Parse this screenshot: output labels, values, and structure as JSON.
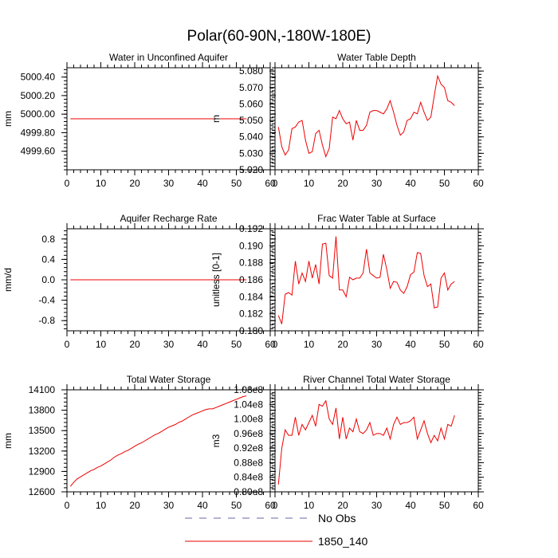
{
  "figure_title": "Polar(60-90N,-180W-180E)",
  "legend": [
    {
      "label": "No Obs",
      "color": "#6666aa",
      "dash": true
    },
    {
      "label": "1850_140",
      "color": "#ee0000",
      "dash": false
    }
  ],
  "chart_data": [
    {
      "type": "line",
      "title": "Water in Unconfined Aquifer",
      "ylabel": "mm",
      "xlim": [
        0,
        60
      ],
      "ylim": [
        4999.4,
        5000.5
      ],
      "xticks": [
        0,
        10,
        20,
        30,
        40,
        50,
        60
      ],
      "xtick_labels": [
        "0",
        "10",
        "20",
        "30",
        "40",
        "50",
        "60"
      ],
      "yticks": [
        4999.6,
        4999.8,
        5000.0,
        5000.2,
        5000.4
      ],
      "ytick_labels": [
        "4999.60",
        "4999.80",
        "5000.00",
        "5000.20",
        "5000.40"
      ],
      "series": [
        {
          "name": "1850_140",
          "color": "#ee0000",
          "x": [
            1,
            53
          ],
          "values": [
            4999.95,
            4999.95
          ]
        }
      ]
    },
    {
      "type": "line",
      "title": "Water Table Depth",
      "ylabel": "m",
      "xlim": [
        0,
        60
      ],
      "ylim": [
        5.02,
        5.082
      ],
      "xticks": [
        0,
        10,
        20,
        30,
        40,
        50,
        60
      ],
      "xtick_labels": [
        "0",
        "10",
        "20",
        "30",
        "40",
        "50",
        "60"
      ],
      "yticks": [
        5.02,
        5.03,
        5.04,
        5.05,
        5.06,
        5.07,
        5.08
      ],
      "ytick_labels": [
        "5.020",
        "5.030",
        "5.040",
        "5.050",
        "5.060",
        "5.070",
        "5.080"
      ],
      "series": [
        {
          "name": "1850_140",
          "color": "#ee0000",
          "x": [
            1,
            2,
            3,
            4,
            5,
            6,
            7,
            8,
            9,
            10,
            11,
            12,
            13,
            14,
            15,
            16,
            17,
            18,
            19,
            20,
            21,
            22,
            23,
            24,
            25,
            26,
            27,
            28,
            29,
            30,
            31,
            32,
            33,
            34,
            35,
            36,
            37,
            38,
            39,
            40,
            41,
            42,
            43,
            44,
            45,
            46,
            47,
            48,
            49,
            50,
            51,
            52,
            53
          ],
          "values": [
            5.046,
            5.034,
            5.029,
            5.032,
            5.045,
            5.046,
            5.049,
            5.05,
            5.038,
            5.03,
            5.031,
            5.042,
            5.044,
            5.035,
            5.028,
            5.033,
            5.052,
            5.051,
            5.056,
            5.051,
            5.048,
            5.049,
            5.038,
            5.05,
            5.044,
            5.044,
            5.047,
            5.055,
            5.056,
            5.056,
            5.055,
            5.054,
            5.057,
            5.062,
            5.055,
            5.047,
            5.041,
            5.043,
            5.05,
            5.051,
            5.055,
            5.054,
            5.061,
            5.055,
            5.05,
            5.052,
            5.065,
            5.077,
            5.072,
            5.07,
            5.062,
            5.061,
            5.059
          ]
        }
      ]
    },
    {
      "type": "line",
      "title": "Aquifer Recharge Rate",
      "ylabel": "mm/d",
      "xlim": [
        0,
        60
      ],
      "ylim": [
        -1.0,
        1.0
      ],
      "xticks": [
        0,
        10,
        20,
        30,
        40,
        50,
        60
      ],
      "xtick_labels": [
        "0",
        "10",
        "20",
        "30",
        "40",
        "50",
        "60"
      ],
      "yticks": [
        -0.8,
        -0.4,
        0.0,
        0.4,
        0.8
      ],
      "ytick_labels": [
        "-0.8",
        "-0.4",
        "0.0",
        "0.4",
        "0.8"
      ],
      "series": [
        {
          "name": "1850_140",
          "color": "#ee0000",
          "x": [
            1,
            53
          ],
          "values": [
            0.0,
            0.0
          ]
        }
      ]
    },
    {
      "type": "line",
      "title": "Frac Water Table at Surface",
      "ylabel": "unitless [0-1]",
      "xlim": [
        0,
        60
      ],
      "ylim": [
        0.18,
        0.192
      ],
      "xticks": [
        0,
        10,
        20,
        30,
        40,
        50,
        60
      ],
      "xtick_labels": [
        "0",
        "10",
        "20",
        "30",
        "40",
        "50",
        "60"
      ],
      "yticks": [
        0.18,
        0.182,
        0.184,
        0.186,
        0.188,
        0.19,
        0.192
      ],
      "ytick_labels": [
        "0.180",
        "0.182",
        "0.184",
        "0.186",
        "0.188",
        "0.190",
        "0.192"
      ],
      "series": [
        {
          "name": "1850_140",
          "color": "#ee0000",
          "x": [
            1,
            2,
            3,
            4,
            5,
            6,
            7,
            8,
            9,
            10,
            11,
            12,
            13,
            14,
            15,
            16,
            17,
            18,
            19,
            20,
            21,
            22,
            23,
            24,
            25,
            26,
            27,
            28,
            29,
            30,
            31,
            32,
            33,
            34,
            35,
            36,
            37,
            38,
            39,
            40,
            41,
            42,
            43,
            44,
            45,
            46,
            47,
            48,
            49,
            50,
            51,
            52,
            53
          ],
          "values": [
            0.1818,
            0.1808,
            0.1843,
            0.1845,
            0.1842,
            0.1882,
            0.1855,
            0.1868,
            0.1858,
            0.1882,
            0.1862,
            0.1878,
            0.1855,
            0.1902,
            0.1903,
            0.1865,
            0.1862,
            0.1911,
            0.1848,
            0.1848,
            0.184,
            0.1863,
            0.186,
            0.1862,
            0.1862,
            0.1868,
            0.1896,
            0.1868,
            0.1865,
            0.1862,
            0.1863,
            0.189,
            0.1872,
            0.185,
            0.1858,
            0.1857,
            0.1848,
            0.1844,
            0.1852,
            0.1866,
            0.1869,
            0.1892,
            0.1891,
            0.1865,
            0.1852,
            0.1855,
            0.1827,
            0.1828,
            0.1862,
            0.1868,
            0.1848,
            0.1855,
            0.1858
          ]
        }
      ]
    },
    {
      "type": "line",
      "title": "Total Water Storage",
      "ylabel": "mm",
      "xlim": [
        0,
        60
      ],
      "ylim": [
        12600,
        14100
      ],
      "xticks": [
        0,
        10,
        20,
        30,
        40,
        50,
        60
      ],
      "xtick_labels": [
        "0",
        "10",
        "20",
        "30",
        "40",
        "50",
        "60"
      ],
      "yticks": [
        12600,
        12900,
        13200,
        13500,
        13800,
        14100
      ],
      "ytick_labels": [
        "12600",
        "12900",
        "13200",
        "13500",
        "13800",
        "14100"
      ],
      "series": [
        {
          "name": "1850_140",
          "color": "#ee0000",
          "x": [
            1,
            2,
            3,
            4,
            5,
            6,
            7,
            8,
            9,
            10,
            11,
            12,
            13,
            14,
            15,
            16,
            17,
            18,
            19,
            20,
            21,
            22,
            23,
            24,
            25,
            26,
            27,
            28,
            29,
            30,
            31,
            32,
            33,
            34,
            35,
            36,
            37,
            38,
            39,
            40,
            41,
            42,
            43,
            44,
            45,
            46,
            47,
            48,
            49,
            50,
            51,
            52,
            53
          ],
          "values": [
            12680,
            12740,
            12790,
            12820,
            12850,
            12880,
            12910,
            12930,
            12960,
            12980,
            13010,
            13040,
            13070,
            13110,
            13140,
            13160,
            13190,
            13210,
            13240,
            13270,
            13300,
            13320,
            13350,
            13380,
            13410,
            13440,
            13460,
            13490,
            13520,
            13550,
            13570,
            13590,
            13620,
            13640,
            13670,
            13700,
            13730,
            13750,
            13770,
            13790,
            13810,
            13820,
            13820,
            13840,
            13860,
            13880,
            13900,
            13920,
            13940,
            13960,
            13980,
            14000,
            14010
          ]
        }
      ]
    },
    {
      "type": "line",
      "title": "River Channel Total Water Storage",
      "ylabel": "m3",
      "xlim": [
        0,
        60
      ],
      "ylim": [
        0.8,
        1.08
      ],
      "xticks": [
        0,
        10,
        20,
        30,
        40,
        50,
        60
      ],
      "xtick_labels": [
        "0",
        "10",
        "20",
        "30",
        "40",
        "50",
        "60"
      ],
      "yticks": [
        0.8,
        0.84,
        0.88,
        0.92,
        0.96,
        1.0,
        1.04,
        1.08
      ],
      "ytick_labels": [
        "0.80e8",
        "0.84e8",
        "0.88e8",
        "0.92e8",
        "0.96e8",
        "1.00e8",
        "1.04e8",
        "1.08e8"
      ],
      "series": [
        {
          "name": "1850_140",
          "color": "#ee0000",
          "x": [
            1,
            2,
            3,
            4,
            5,
            6,
            7,
            8,
            9,
            10,
            11,
            12,
            13,
            14,
            15,
            16,
            17,
            18,
            19,
            20,
            21,
            22,
            23,
            24,
            25,
            26,
            27,
            28,
            29,
            30,
            31,
            32,
            33,
            34,
            35,
            36,
            37,
            38,
            39,
            40,
            41,
            42,
            43,
            44,
            45,
            46,
            47,
            48,
            49,
            50,
            51,
            52,
            53
          ],
          "values": [
            0.82,
            0.92,
            0.97,
            0.955,
            0.955,
            1.005,
            0.955,
            0.985,
            0.97,
            0.99,
            1.01,
            0.98,
            1.04,
            1.035,
            1.05,
            1.0,
            0.985,
            1.03,
            0.945,
            1.005,
            0.945,
            0.975,
            0.965,
            1.0,
            0.965,
            0.96,
            0.97,
            0.99,
            0.955,
            0.96,
            0.96,
            0.955,
            0.975,
            0.945,
            0.985,
            1.005,
            0.985,
            0.99,
            0.99,
            0.995,
            1.005,
            0.945,
            0.97,
            0.995,
            0.96,
            0.935,
            0.955,
            0.94,
            0.975,
            0.945,
            0.985,
            0.98,
            1.01
          ]
        }
      ]
    }
  ]
}
